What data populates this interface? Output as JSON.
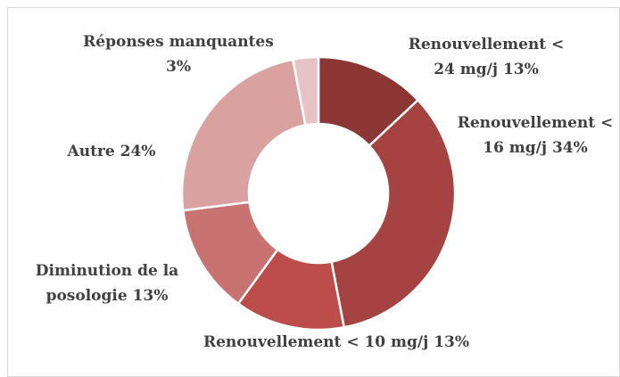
{
  "chart_data": {
    "type": "donut",
    "categories": [
      "Renouvellement < 24 mg/j",
      "Renouvellement < 16 mg/j",
      "Renouvellement < 10 mg/j",
      "Diminution de la posologie",
      "Autre",
      "Réponses manquantes"
    ],
    "values": [
      13,
      34,
      13,
      13,
      24,
      3
    ],
    "value_labels": [
      "13%",
      "34%",
      "13%",
      "13%",
      "24%",
      "3%"
    ],
    "colors": [
      "#8c3736",
      "#a54342",
      "#bd4d4a",
      "#c87371",
      "#d9a2a1",
      "#e6c4c6"
    ]
  }
}
